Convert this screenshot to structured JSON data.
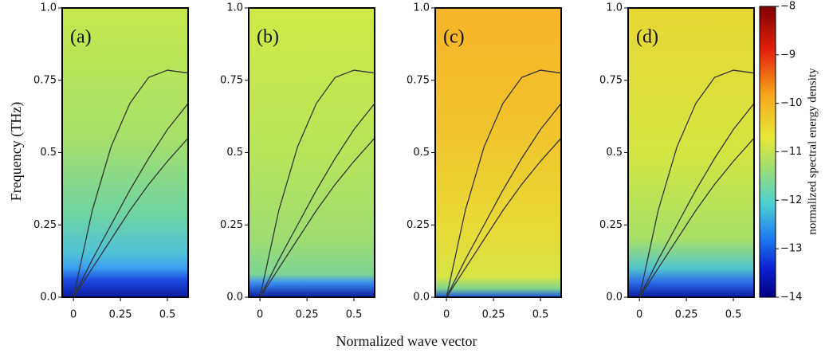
{
  "shared": {
    "ylabel": "Frequency (THz)",
    "xlabel": "Normalized wave vector"
  },
  "chart_data": [
    {
      "type": "heatmap",
      "panel_label": "(a)",
      "xlim": [
        -0.06,
        0.61
      ],
      "ylim": [
        0,
        1
      ],
      "xticks": [
        0,
        0.25,
        0.5
      ],
      "yticks": [
        {
          "value": 0,
          "label": "0.0"
        },
        0.25,
        0.5,
        0.75,
        {
          "value": 1,
          "label": "1.0"
        }
      ],
      "x": [
        0,
        0.1,
        0.2,
        0.3,
        0.4,
        0.5,
        0.61
      ],
      "series": [
        {
          "color": "#333333",
          "values": [
            0,
            0.3,
            0.52,
            0.67,
            0.76,
            0.785,
            0.775
          ]
        },
        {
          "color": "#333333",
          "values": [
            0,
            0.13,
            0.25,
            0.37,
            0.48,
            0.58,
            0.67
          ]
        },
        {
          "color": "#333333",
          "values": [
            0,
            0.1,
            0.2,
            0.3,
            0.39,
            0.47,
            0.55
          ]
        }
      ]
    },
    {
      "type": "heatmap",
      "panel_label": "(b)",
      "xlim": [
        -0.06,
        0.61
      ],
      "ylim": [
        0,
        1
      ],
      "xticks": [
        0,
        0.25,
        0.5
      ],
      "yticks": [
        {
          "value": 0,
          "label": "0.0"
        },
        0.25,
        0.5,
        0.75,
        {
          "value": 1,
          "label": "1.0"
        }
      ],
      "x": [
        0,
        0.1,
        0.2,
        0.3,
        0.4,
        0.5,
        0.61
      ],
      "series": [
        {
          "color": "#333333",
          "values": [
            0,
            0.3,
            0.52,
            0.67,
            0.76,
            0.785,
            0.775
          ]
        },
        {
          "color": "#333333",
          "values": [
            0,
            0.13,
            0.25,
            0.37,
            0.48,
            0.58,
            0.67
          ]
        },
        {
          "color": "#333333",
          "values": [
            0,
            0.1,
            0.2,
            0.3,
            0.39,
            0.47,
            0.55
          ]
        }
      ]
    },
    {
      "type": "heatmap",
      "panel_label": "(c)",
      "xlim": [
        -0.06,
        0.61
      ],
      "ylim": [
        0,
        1
      ],
      "xticks": [
        0,
        0.25,
        0.5
      ],
      "yticks": [
        {
          "value": 0,
          "label": "0.0"
        },
        0.25,
        0.5,
        0.75,
        {
          "value": 1,
          "label": "1.0"
        }
      ],
      "x": [
        0,
        0.1,
        0.2,
        0.3,
        0.4,
        0.5,
        0.61
      ],
      "series": [
        {
          "color": "#333333",
          "values": [
            0,
            0.3,
            0.52,
            0.67,
            0.76,
            0.785,
            0.775
          ]
        },
        {
          "color": "#333333",
          "values": [
            0,
            0.13,
            0.25,
            0.37,
            0.48,
            0.58,
            0.67
          ]
        },
        {
          "color": "#333333",
          "values": [
            0,
            0.1,
            0.2,
            0.3,
            0.39,
            0.47,
            0.55
          ]
        }
      ]
    },
    {
      "type": "heatmap",
      "panel_label": "(d)",
      "xlim": [
        -0.06,
        0.61
      ],
      "ylim": [
        0,
        1
      ],
      "xticks": [
        0,
        0.25,
        0.5
      ],
      "yticks": [
        {
          "value": 0,
          "label": "0.0"
        },
        0.25,
        0.5,
        0.75,
        {
          "value": 1,
          "label": "1.0"
        }
      ],
      "x": [
        0,
        0.1,
        0.2,
        0.3,
        0.4,
        0.5,
        0.61
      ],
      "series": [
        {
          "color": "#333333",
          "values": [
            0,
            0.3,
            0.52,
            0.67,
            0.76,
            0.785,
            0.775
          ]
        },
        {
          "color": "#333333",
          "values": [
            0,
            0.13,
            0.25,
            0.37,
            0.48,
            0.58,
            0.67
          ]
        },
        {
          "color": "#333333",
          "values": [
            0,
            0.1,
            0.2,
            0.3,
            0.39,
            0.47,
            0.55
          ]
        }
      ]
    },
    {
      "type": "colorbar",
      "label": "normalized spectral energy density",
      "ylim": [
        -14,
        -8
      ],
      "yticks": [
        {
          "value": -8,
          "label": "−8"
        },
        {
          "value": -9,
          "label": "−9"
        },
        {
          "value": -10,
          "label": "−10"
        },
        {
          "value": -11,
          "label": "−11"
        },
        {
          "value": -12,
          "label": "−12"
        },
        {
          "value": -13,
          "label": "−13"
        },
        {
          "value": -14,
          "label": "−14"
        }
      ]
    }
  ]
}
